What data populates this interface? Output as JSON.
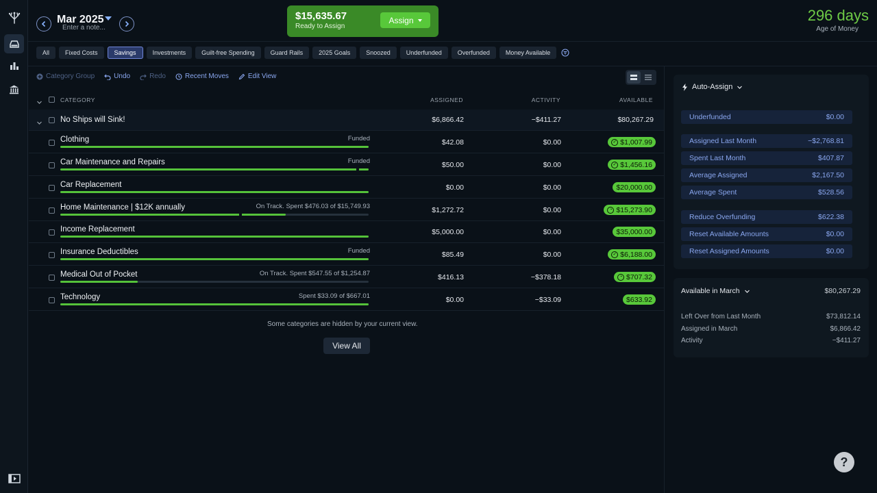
{
  "header": {
    "month": "Mar 2025",
    "note_placeholder": "Enter a note...",
    "ready_amount": "$15,635.67",
    "ready_label": "Ready to Assign",
    "assign_label": "Assign",
    "age_of_money_value": "296 days",
    "age_of_money_label": "Age of Money"
  },
  "filters": [
    "All",
    "Fixed Costs",
    "Savings",
    "Investments",
    "Guilt-free Spending",
    "Guard Rails",
    "2025 Goals",
    "Snoozed",
    "Underfunded",
    "Overfunded",
    "Money Available"
  ],
  "active_filter": "Savings",
  "toolbar": {
    "category_group": "Category Group",
    "undo": "Undo",
    "redo": "Redo",
    "recent_moves": "Recent Moves",
    "edit_view": "Edit View"
  },
  "table": {
    "headers": {
      "category": "CATEGORY",
      "assigned": "ASSIGNED",
      "activity": "ACTIVITY",
      "available": "AVAILABLE"
    },
    "group": {
      "name": "No Ships will Sink!",
      "assigned": "$6,866.42",
      "activity": "−$411.27",
      "available": "$80,267.29"
    },
    "rows": [
      {
        "name": "Clothing",
        "status": "Funded",
        "assigned": "$42.08",
        "activity": "$0.00",
        "available": "$1,007.99",
        "icon": "check",
        "progress": 1.0,
        "split": 0
      },
      {
        "name": "Car Maintenance and Repairs",
        "status": "Funded",
        "assigned": "$50.00",
        "activity": "$0.00",
        "available": "$1,456.16",
        "icon": "check",
        "progress": 1.0,
        "split": 0.96
      },
      {
        "name": "Car Replacement",
        "status": "",
        "assigned": "$0.00",
        "activity": "$0.00",
        "available": "$20,000.00",
        "icon": "",
        "progress": 1.0,
        "split": 0
      },
      {
        "name": "Home Maintenance | $12K annually",
        "status": "On Track. Spent $476.03 of $15,749.93",
        "assigned": "$1,272.72",
        "activity": "$0.00",
        "available": "$15,273.90",
        "icon": "clock",
        "progress": 0.73,
        "split": 0.58
      },
      {
        "name": "Income Replacement",
        "status": "",
        "assigned": "$5,000.00",
        "activity": "$0.00",
        "available": "$35,000.00",
        "icon": "",
        "progress": 1.0,
        "split": 0
      },
      {
        "name": "Insurance Deductibles",
        "status": "Funded",
        "assigned": "$85.49",
        "activity": "$0.00",
        "available": "$6,188.00",
        "icon": "check",
        "progress": 1.0,
        "split": 0
      },
      {
        "name": "Medical Out of Pocket",
        "status": "On Track. Spent $547.55 of $1,254.87",
        "assigned": "$416.13",
        "activity": "−$378.18",
        "available": "$707.32",
        "icon": "clock",
        "progress": 0.25,
        "split": 0
      },
      {
        "name": "Technology",
        "status": "Spent $33.09 of $667.01",
        "assigned": "$0.00",
        "activity": "−$33.09",
        "available": "$633.92",
        "icon": "",
        "progress": 1.0,
        "split": 0
      }
    ],
    "hidden_message": "Some categories are hidden by your current view.",
    "view_all": "View All"
  },
  "auto_assign": {
    "title": "Auto-Assign",
    "items": [
      {
        "label": "Underfunded",
        "value": "$0.00"
      },
      {
        "label": "Assigned Last Month",
        "value": "−$2,768.81"
      },
      {
        "label": "Spent Last Month",
        "value": "$407.87"
      },
      {
        "label": "Average Assigned",
        "value": "$2,167.50"
      },
      {
        "label": "Average Spent",
        "value": "$528.56"
      },
      {
        "label": "Reduce Overfunding",
        "value": "$622.38"
      },
      {
        "label": "Reset Available Amounts",
        "value": "$0.00"
      },
      {
        "label": "Reset Assigned Amounts",
        "value": "$0.00"
      }
    ]
  },
  "available_month": {
    "title": "Available in March",
    "total": "$80,267.29",
    "lines": [
      {
        "label": "Left Over from Last Month",
        "value": "$73,812.14"
      },
      {
        "label": "Assigned in March",
        "value": "$6,866.42"
      },
      {
        "label": "Activity",
        "value": "−$411.27"
      }
    ]
  },
  "help_label": "?",
  "colors": {
    "accent_green": "#58c83a",
    "link_blue": "#8aa7ef",
    "background": "#0a1118"
  }
}
